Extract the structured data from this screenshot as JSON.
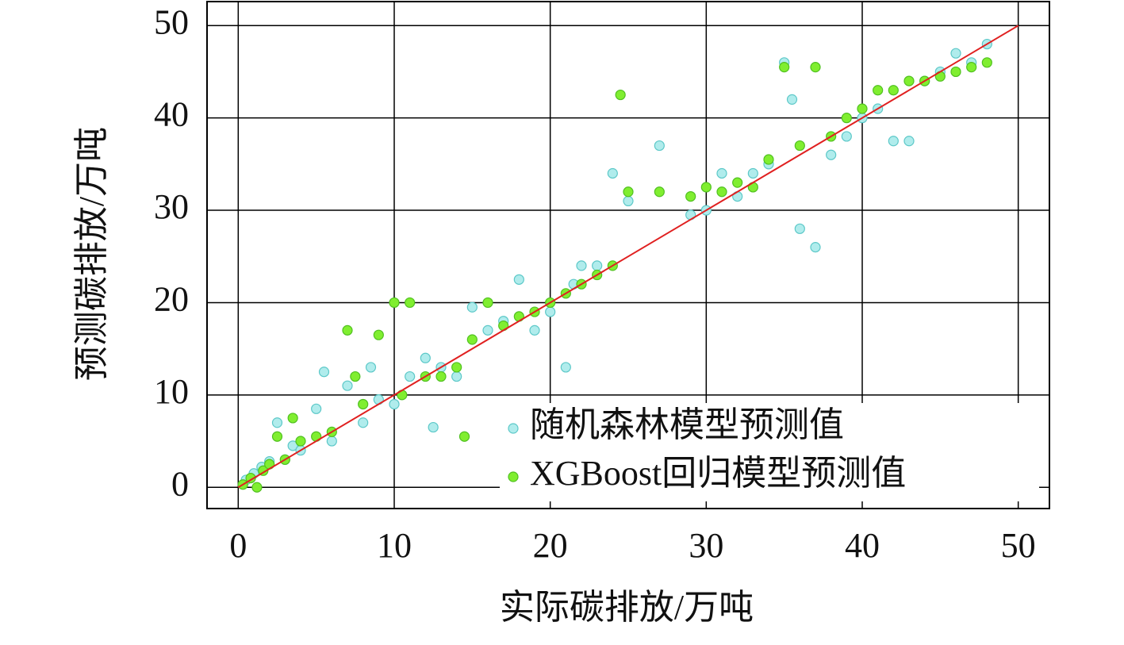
{
  "chart_data": {
    "type": "scatter",
    "xlabel": "实际碳排放/万吨",
    "ylabel": "预测碳排放/万吨",
    "xlim": [
      -2,
      52
    ],
    "ylim": [
      -2.3,
      52.6
    ],
    "xticks": [
      0,
      10,
      20,
      30,
      40,
      50
    ],
    "yticks": [
      0,
      10,
      20,
      30,
      40,
      50
    ],
    "grid": true,
    "legend": "lower right",
    "series": [
      {
        "name": "随机森林模型预测值",
        "color": "#b0ecec",
        "edge": "#5cc8c8",
        "x": [
          0.5,
          1,
          1.5,
          2,
          2.5,
          3,
          3.5,
          4,
          5,
          5.5,
          6,
          7,
          8,
          8.5,
          9,
          10,
          11,
          12,
          12.5,
          13,
          14,
          15,
          16,
          17,
          18,
          19,
          20,
          21,
          21.5,
          22,
          23,
          24,
          25,
          27,
          29,
          30,
          31,
          32,
          33,
          34,
          35,
          35.5,
          36,
          37,
          38,
          39,
          40,
          41,
          42,
          43,
          44,
          45,
          46,
          47,
          48
        ],
        "values": [
          0.8,
          1.5,
          2.2,
          2.8,
          7,
          3,
          4.5,
          4,
          8.5,
          12.5,
          5,
          11,
          7,
          13,
          9.5,
          9,
          12,
          14,
          6.5,
          13,
          12,
          19.5,
          17,
          18,
          22.5,
          17,
          19,
          13,
          22,
          24,
          24,
          34,
          31,
          37,
          29.5,
          30,
          34,
          31.5,
          34,
          35,
          46,
          42,
          28,
          26,
          36,
          38,
          40,
          41,
          37.5,
          37.5,
          44,
          45,
          47,
          46,
          48
        ]
      },
      {
        "name": "XGBoost回归模型预测值",
        "color": "#80ee30",
        "edge": "#50c020",
        "x": [
          0.3,
          0.8,
          1.2,
          1.6,
          2,
          2.5,
          3,
          3.5,
          4,
          5,
          6,
          7,
          7.5,
          8,
          9,
          10,
          10.5,
          11,
          12,
          13,
          14,
          14.5,
          15,
          16,
          17,
          18,
          19,
          20,
          21,
          22,
          23,
          24,
          24.5,
          25,
          27,
          29,
          30,
          31,
          32,
          33,
          34,
          35,
          36,
          37,
          38,
          39,
          40,
          41,
          42,
          43,
          44,
          45,
          46,
          47,
          48
        ],
        "values": [
          0.3,
          1,
          0,
          1.8,
          2.5,
          5.5,
          3,
          7.5,
          5,
          5.5,
          6,
          17,
          12,
          9,
          16.5,
          20,
          10,
          20,
          12,
          12,
          13,
          5.5,
          16,
          20,
          17.5,
          18.5,
          19,
          20,
          21,
          22,
          23,
          24,
          42.5,
          32,
          32,
          31.5,
          32.5,
          32,
          33,
          32.5,
          35.5,
          45.5,
          37,
          45.5,
          38,
          40,
          41,
          43,
          43,
          44,
          44,
          44.5,
          45,
          45.5,
          46
        ]
      }
    ],
    "reference_line": {
      "x": [
        0,
        50
      ],
      "values": [
        0,
        50
      ],
      "color": "#e02020"
    }
  }
}
